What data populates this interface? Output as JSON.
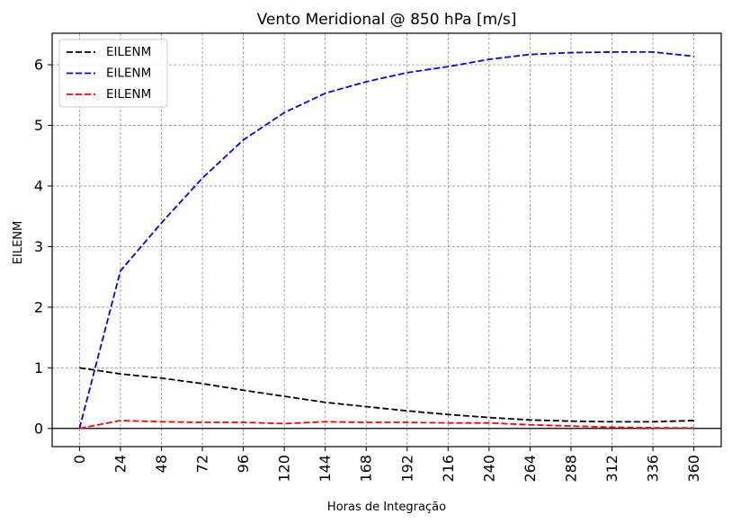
{
  "chart_data": {
    "type": "line",
    "title": "Vento Meridional @ 850 hPa [m/s]",
    "xlabel": "Horas de Integração",
    "ylabel": "EILENM",
    "x": [
      0,
      24,
      48,
      72,
      96,
      120,
      144,
      168,
      192,
      216,
      240,
      264,
      288,
      312,
      336,
      360
    ],
    "xticks": [
      "0",
      "24",
      "48",
      "72",
      "96",
      "120",
      "144",
      "168",
      "192",
      "216",
      "240",
      "264",
      "288",
      "312",
      "336",
      "360"
    ],
    "yticks": [
      "0",
      "1",
      "2",
      "3",
      "4",
      "5",
      "6"
    ],
    "xlim": [
      -16,
      376
    ],
    "ylim": [
      -0.3,
      6.52
    ],
    "grid": true,
    "legend_position": "top-left",
    "zero_line": true,
    "series": [
      {
        "name": "EILENM",
        "color": "#000000",
        "values": [
          1.0,
          0.9,
          0.83,
          0.74,
          0.63,
          0.53,
          0.43,
          0.36,
          0.29,
          0.23,
          0.18,
          0.14,
          0.12,
          0.11,
          0.11,
          0.13
        ]
      },
      {
        "name": "EILENM",
        "color": "#0000ff",
        "values": [
          0.0,
          2.6,
          3.39,
          4.13,
          4.76,
          5.21,
          5.53,
          5.72,
          5.87,
          5.97,
          6.09,
          6.17,
          6.2,
          6.21,
          6.21,
          6.14
        ]
      },
      {
        "name": "EILENM",
        "color": "#ff0000",
        "values": [
          0.0,
          0.13,
          0.11,
          0.1,
          0.1,
          0.08,
          0.11,
          0.1,
          0.1,
          0.09,
          0.09,
          0.06,
          0.04,
          0.02,
          0.01,
          0.01
        ]
      }
    ]
  }
}
